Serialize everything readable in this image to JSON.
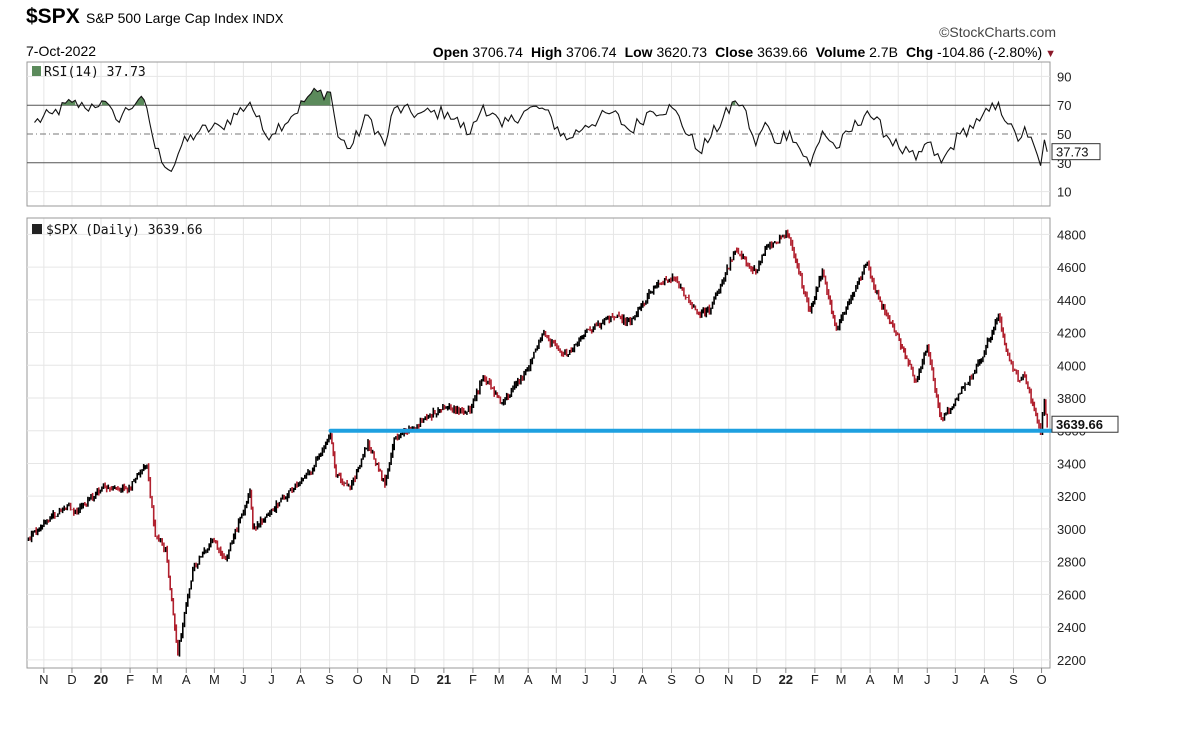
{
  "header": {
    "symbol": "$SPX",
    "index_name": "S&P 500 Large Cap Index",
    "exchange": "INDX",
    "date": "7-Oct-2022",
    "brand": "StockCharts.com",
    "brand_icon": "copyright-icon",
    "open_label": "Open",
    "open": "3706.74",
    "high_label": "High",
    "high": "3706.74",
    "low_label": "Low",
    "low": "3620.73",
    "close_label": "Close",
    "close": "3639.66",
    "volume_label": "Volume",
    "volume": "2.7B",
    "chg_label": "Chg",
    "chg": "-104.86 (-2.80%)",
    "chg_icon": "down-triangle-icon",
    "chg_color": "#8b1a2a"
  },
  "chart_data": [
    {
      "type": "line",
      "panel": "RSI",
      "title": "RSI(14) 37.73",
      "last_value_label": "37.73",
      "ylim": [
        0,
        100
      ],
      "y_ticks": [
        90,
        70,
        50,
        30,
        10
      ],
      "overbought": 70,
      "oversold": 30,
      "midline": 50,
      "grid": true,
      "fill_color_overbought": "#5b8a5b",
      "x": [
        "2019-10-22",
        "2019-11-10",
        "2019-12-01",
        "2019-12-15",
        "2020-01-02",
        "2020-01-17",
        "2020-02-10",
        "2020-02-19",
        "2020-02-28",
        "2020-03-16",
        "2020-03-27",
        "2020-04-15",
        "2020-05-08",
        "2020-06-08",
        "2020-06-25",
        "2020-07-22",
        "2020-08-12",
        "2020-09-02",
        "2020-09-10",
        "2020-09-23",
        "2020-10-12",
        "2020-10-30",
        "2020-11-09",
        "2020-12-04",
        "2021-01-05",
        "2021-01-29",
        "2021-02-12",
        "2021-03-04",
        "2021-03-31",
        "2021-04-16",
        "2021-05-12",
        "2021-06-01",
        "2021-06-30",
        "2021-07-19",
        "2021-08-09",
        "2021-09-02",
        "2021-09-30",
        "2021-10-13",
        "2021-11-08",
        "2021-11-16",
        "2021-11-30",
        "2021-12-10",
        "2021-12-20",
        "2022-01-05",
        "2022-01-27",
        "2022-02-09",
        "2022-02-24",
        "2022-03-29",
        "2022-04-05",
        "2022-05-02",
        "2022-05-20",
        "2022-06-01",
        "2022-06-16",
        "2022-07-06",
        "2022-07-27",
        "2022-08-16",
        "2022-08-26",
        "2022-09-06",
        "2022-09-13",
        "2022-09-30",
        "2022-10-04",
        "2022-10-07"
      ],
      "values": [
        58,
        64,
        72,
        68,
        73,
        60,
        74,
        68,
        40,
        24,
        42,
        52,
        55,
        72,
        49,
        62,
        78,
        79,
        48,
        40,
        63,
        42,
        68,
        64,
        65,
        50,
        70,
        55,
        67,
        68,
        46,
        56,
        65,
        52,
        66,
        68,
        38,
        48,
        73,
        70,
        42,
        58,
        44,
        52,
        28,
        52,
        40,
        66,
        60,
        40,
        32,
        44,
        30,
        50,
        59,
        72,
        57,
        45,
        55,
        28,
        46,
        37.73
      ]
    },
    {
      "type": "line",
      "panel": "price",
      "title": "$SPX (Daily) 3639.66",
      "last_value_label": "3639.66",
      "ylim": [
        2150,
        4900
      ],
      "y_ticks": [
        4800,
        4600,
        4400,
        4200,
        4000,
        3800,
        3600,
        3400,
        3200,
        3000,
        2800,
        2600,
        2400,
        2200
      ],
      "x_ticks": [
        {
          "date": "2019-11-01",
          "label": "N",
          "bold": false
        },
        {
          "date": "2019-12-01",
          "label": "D",
          "bold": false
        },
        {
          "date": "2020-01-01",
          "label": "20",
          "bold": true
        },
        {
          "date": "2020-02-01",
          "label": "F",
          "bold": false
        },
        {
          "date": "2020-03-01",
          "label": "M",
          "bold": false
        },
        {
          "date": "2020-04-01",
          "label": "A",
          "bold": false
        },
        {
          "date": "2020-05-01",
          "label": "M",
          "bold": false
        },
        {
          "date": "2020-06-01",
          "label": "J",
          "bold": false
        },
        {
          "date": "2020-07-01",
          "label": "J",
          "bold": false
        },
        {
          "date": "2020-08-01",
          "label": "A",
          "bold": false
        },
        {
          "date": "2020-09-01",
          "label": "S",
          "bold": false
        },
        {
          "date": "2020-10-01",
          "label": "O",
          "bold": false
        },
        {
          "date": "2020-11-01",
          "label": "N",
          "bold": false
        },
        {
          "date": "2020-12-01",
          "label": "D",
          "bold": false
        },
        {
          "date": "2021-01-01",
          "label": "21",
          "bold": true
        },
        {
          "date": "2021-02-01",
          "label": "F",
          "bold": false
        },
        {
          "date": "2021-03-01",
          "label": "M",
          "bold": false
        },
        {
          "date": "2021-04-01",
          "label": "A",
          "bold": false
        },
        {
          "date": "2021-05-01",
          "label": "M",
          "bold": false
        },
        {
          "date": "2021-06-01",
          "label": "J",
          "bold": false
        },
        {
          "date": "2021-07-01",
          "label": "J",
          "bold": false
        },
        {
          "date": "2021-08-01",
          "label": "A",
          "bold": false
        },
        {
          "date": "2021-09-01",
          "label": "S",
          "bold": false
        },
        {
          "date": "2021-10-01",
          "label": "O",
          "bold": false
        },
        {
          "date": "2021-11-01",
          "label": "N",
          "bold": false
        },
        {
          "date": "2021-12-01",
          "label": "D",
          "bold": false
        },
        {
          "date": "2022-01-01",
          "label": "22",
          "bold": true
        },
        {
          "date": "2022-02-01",
          "label": "F",
          "bold": false
        },
        {
          "date": "2022-03-01",
          "label": "M",
          "bold": false
        },
        {
          "date": "2022-04-01",
          "label": "A",
          "bold": false
        },
        {
          "date": "2022-05-01",
          "label": "M",
          "bold": false
        },
        {
          "date": "2022-06-01",
          "label": "J",
          "bold": false
        },
        {
          "date": "2022-07-01",
          "label": "J",
          "bold": false
        },
        {
          "date": "2022-08-01",
          "label": "A",
          "bold": false
        },
        {
          "date": "2022-09-01",
          "label": "S",
          "bold": false
        },
        {
          "date": "2022-10-01",
          "label": "O",
          "bold": false
        }
      ],
      "x_range": [
        "2019-10-14",
        "2022-10-10"
      ],
      "grid": true,
      "up_color": "#000000",
      "down_color": "#b0202e",
      "x": [
        "2019-10-14",
        "2019-11-01",
        "2019-11-26",
        "2019-12-03",
        "2020-01-02",
        "2020-01-31",
        "2020-02-19",
        "2020-02-28",
        "2020-03-10",
        "2020-03-23",
        "2020-04-08",
        "2020-04-29",
        "2020-05-13",
        "2020-06-08",
        "2020-06-11",
        "2020-07-01",
        "2020-07-23",
        "2020-08-14",
        "2020-09-02",
        "2020-09-08",
        "2020-09-23",
        "2020-10-12",
        "2020-10-30",
        "2020-11-09",
        "2020-11-30",
        "2020-12-31",
        "2021-01-29",
        "2021-02-12",
        "2021-03-04",
        "2021-03-31",
        "2021-04-16",
        "2021-05-12",
        "2021-06-01",
        "2021-06-30",
        "2021-07-19",
        "2021-08-13",
        "2021-09-02",
        "2021-09-30",
        "2021-10-13",
        "2021-11-08",
        "2021-11-30",
        "2021-12-10",
        "2022-01-03",
        "2022-01-27",
        "2022-02-09",
        "2022-02-24",
        "2022-03-29",
        "2022-04-05",
        "2022-05-02",
        "2022-05-20",
        "2022-06-01",
        "2022-06-16",
        "2022-07-06",
        "2022-07-27",
        "2022-08-16",
        "2022-08-26",
        "2022-09-06",
        "2022-09-13",
        "2022-09-30",
        "2022-10-04",
        "2022-10-07"
      ],
      "values": [
        2930,
        3040,
        3140,
        3100,
        3245,
        3250,
        3385,
        2955,
        2880,
        2240,
        2750,
        2940,
        2820,
        3230,
        3000,
        3115,
        3240,
        3370,
        3580,
        3330,
        3240,
        3530,
        3270,
        3550,
        3620,
        3750,
        3720,
        3935,
        3770,
        3970,
        4190,
        4060,
        4200,
        4300,
        4260,
        4470,
        4540,
        4310,
        4350,
        4700,
        4570,
        4710,
        4800,
        4330,
        4580,
        4220,
        4630,
        4480,
        4150,
        3900,
        4110,
        3670,
        3830,
        4020,
        4300,
        4060,
        3910,
        3930,
        3590,
        3780,
        3639.66
      ]
    }
  ],
  "annotation": {
    "support_line_level": 3600,
    "support_line_start": "2020-09-02",
    "support_line_end": "2022-10-07",
    "support_line_color": "#1ea0e0"
  }
}
